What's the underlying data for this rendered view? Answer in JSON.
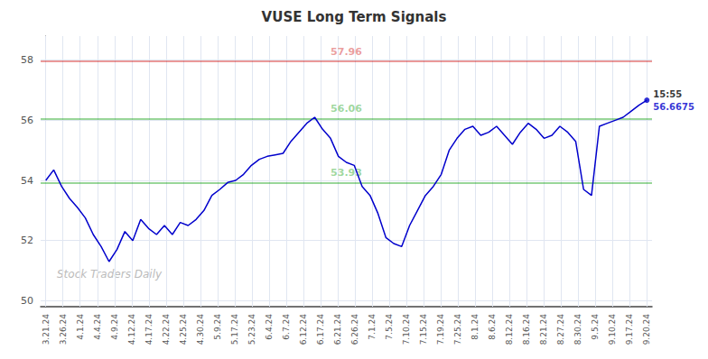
{
  "chart_data": {
    "type": "line",
    "title": "VUSE Long Term Signals",
    "x": [
      0,
      0.4605,
      0.9211,
      1.3816,
      1.8421,
      2.3026,
      2.7632,
      3.2237,
      3.6842,
      4.1447,
      4.6053,
      5.0658,
      5.5263,
      5.9868,
      6.4474,
      6.9079,
      7.3684,
      7.8289,
      8.2895,
      8.75,
      9.2105,
      9.6711,
      10.1316,
      10.5921,
      11.0526,
      11.5132,
      11.9737,
      12.4342,
      12.8947,
      13.3553,
      13.8158,
      14.2763,
      14.7368,
      15.1974,
      15.6579,
      16.1184,
      16.5789,
      17.0395,
      17.5,
      17.9605,
      18.4211,
      18.8816,
      19.3421,
      19.8026,
      20.2632,
      20.7237,
      21.1842,
      21.6447,
      22.1053,
      22.5658,
      23.0263,
      23.4868,
      23.9474,
      24.4079,
      24.8684,
      25.3289,
      25.7895,
      26.25,
      26.7105,
      27.1711,
      27.6316,
      28.0921,
      28.5526,
      29.0132,
      29.4737,
      29.9342,
      30.3947,
      30.8553,
      31.3158,
      31.7763,
      32.2368,
      32.6974,
      33.1579,
      33.6184,
      34.0789,
      34.5395,
      35
    ],
    "values": [
      54.0,
      54.35,
      53.8,
      53.4,
      53.1,
      52.75,
      52.2,
      51.8,
      51.3,
      51.7,
      52.3,
      52.0,
      52.7,
      52.4,
      52.2,
      52.5,
      52.2,
      52.6,
      52.5,
      52.7,
      53.0,
      53.5,
      53.7,
      53.93,
      54.0,
      54.2,
      54.5,
      54.7,
      54.8,
      54.85,
      54.9,
      55.3,
      55.6,
      55.9,
      56.1,
      55.7,
      55.4,
      54.8,
      54.6,
      54.5,
      53.8,
      53.5,
      52.9,
      52.1,
      51.9,
      51.8,
      52.5,
      53.0,
      53.5,
      53.8,
      54.2,
      55.0,
      55.4,
      55.7,
      55.8,
      55.5,
      55.6,
      55.8,
      55.5,
      55.2,
      55.6,
      55.9,
      55.7,
      55.4,
      55.5,
      55.8,
      55.6,
      55.3,
      53.7,
      53.5,
      55.8,
      55.9,
      56.0,
      56.1,
      56.3,
      56.5,
      56.6675
    ],
    "color": "#0000cc",
    "xlim": [
      -0.3,
      35.3
    ],
    "xticks": [
      {
        "value": 0,
        "label": "3.21.24"
      },
      {
        "value": 1,
        "label": "3.26.24"
      },
      {
        "value": 2,
        "label": "4.1.24"
      },
      {
        "value": 3,
        "label": "4.4.24"
      },
      {
        "value": 4,
        "label": "4.9.24"
      },
      {
        "value": 5,
        "label": "4.12.24"
      },
      {
        "value": 6,
        "label": "4.17.24"
      },
      {
        "value": 7,
        "label": "4.22.24"
      },
      {
        "value": 8,
        "label": "4.25.24"
      },
      {
        "value": 9,
        "label": "4.30.24"
      },
      {
        "value": 10,
        "label": "5.9.24"
      },
      {
        "value": 11,
        "label": "5.17.24"
      },
      {
        "value": 12,
        "label": "5.23.24"
      },
      {
        "value": 13,
        "label": "6.4.24"
      },
      {
        "value": 14,
        "label": "6.7.24"
      },
      {
        "value": 15,
        "label": "6.12.24"
      },
      {
        "value": 16,
        "label": "6.17.24"
      },
      {
        "value": 17,
        "label": "6.21.24"
      },
      {
        "value": 18,
        "label": "6.26.24"
      },
      {
        "value": 19,
        "label": "7.1.24"
      },
      {
        "value": 20,
        "label": "7.5.24"
      },
      {
        "value": 21,
        "label": "7.10.24"
      },
      {
        "value": 22,
        "label": "7.15.24"
      },
      {
        "value": 23,
        "label": "7.19.24"
      },
      {
        "value": 24,
        "label": "7.25.24"
      },
      {
        "value": 25,
        "label": "8.1.24"
      },
      {
        "value": 26,
        "label": "8.6.24"
      },
      {
        "value": 27,
        "label": "8.12.24"
      },
      {
        "value": 28,
        "label": "8.16.24"
      },
      {
        "value": 29,
        "label": "8.21.24"
      },
      {
        "value": 30,
        "label": "8.27.24"
      },
      {
        "value": 31,
        "label": "8.30.24"
      },
      {
        "value": 32,
        "label": "9.5.24"
      },
      {
        "value": 33,
        "label": "9.10.24"
      },
      {
        "value": 34,
        "label": "9.17.24"
      },
      {
        "value": 35,
        "label": "9.20.24"
      }
    ],
    "ylim": [
      49.8,
      58.8
    ],
    "yticks": [
      50,
      52,
      54,
      56,
      58
    ],
    "grid": true,
    "hlines": [
      {
        "value": 57.96,
        "color": "#cc0000"
      },
      {
        "value": 56.06,
        "color": "#009900"
      },
      {
        "value": 53.93,
        "color": "#009900"
      }
    ],
    "annotations": [
      {
        "text": "15:55",
        "x": 35,
        "y": 56.6675,
        "color": "#000000"
      },
      {
        "text": "56.6675",
        "x": 35,
        "y": 56.6675,
        "color": "#0000cc"
      },
      {
        "text": "Stock Traders Daily",
        "color": "#bbbbbb"
      }
    ]
  }
}
